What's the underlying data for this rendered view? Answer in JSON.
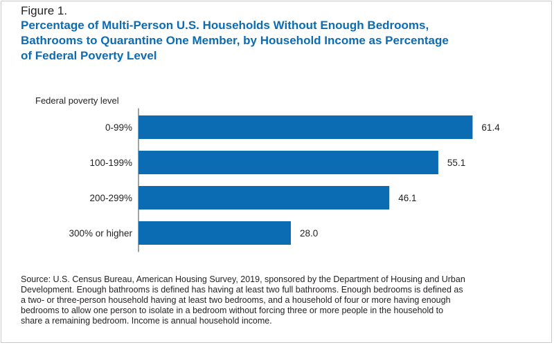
{
  "figure_label": "Figure 1.",
  "title_lines": [
    "Percentage of Multi-Person U.S. Households Without Enough Bedrooms,",
    "Bathrooms to Quarantine One Member, by Household Income as Percentage",
    "of Federal Poverty Level"
  ],
  "source_lines": [
    "Source: U.S. Census Bureau, American Housing Survey, 2019, sponsored by the Department of Housing and Urban",
    "Development. Enough bathrooms is defined has having at least two full bathrooms. Enough bedrooms is defined as",
    "a two- or three-person household having at least two bedrooms, and a household of four or more having enough",
    "bedrooms to allow one person to isolate in a bedroom without forcing three or more people in the household to",
    "share a remaining bedroom. Income is annual household income."
  ],
  "colors": {
    "bar": "#0b6bb3",
    "title": "#0b6bb3",
    "text": "#231f20"
  },
  "chart_data": {
    "type": "bar",
    "orientation": "horizontal",
    "ylabel": "Federal poverty level",
    "categories": [
      "0-99%",
      "100-199%",
      "200-299%",
      "300% or higher"
    ],
    "values": [
      61.4,
      55.1,
      46.1,
      28.0
    ],
    "value_labels": [
      "61.4",
      "55.1",
      "46.1",
      "28.0"
    ],
    "xlim": [
      0,
      70
    ],
    "grid": false,
    "legend": "none"
  }
}
